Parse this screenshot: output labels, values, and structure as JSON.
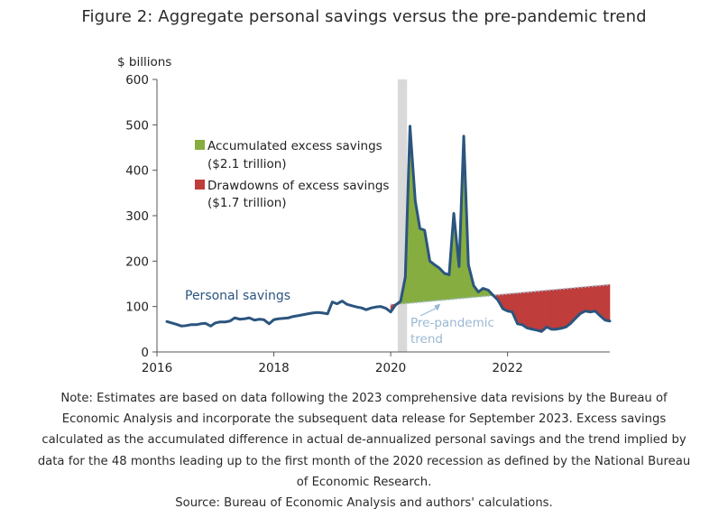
{
  "figure": {
    "title": "Figure 2: Aggregate personal savings versus the pre-pandemic trend",
    "note_lines": [
      "Note: Estimates are based on data following the 2023 comprehensive data revisions by the Bureau of",
      "Economic Analysis and incorporate the subsequent data release for September 2023. Excess savings",
      "calculated as the accumulated difference in actual de-annualized personal savings and the trend implied by",
      "data for the 48 months leading up to the first month of the 2020 recession as defined by the National Bureau",
      "of Economic Research."
    ],
    "source": "Source: Bureau of Economic Analysis and authors' calculations."
  },
  "chart_data": {
    "type": "area",
    "ylabel": "$ billions",
    "ylim": [
      0,
      600
    ],
    "yticks": [
      0,
      100,
      200,
      300,
      400,
      500,
      600
    ],
    "xlim": [
      2016,
      2023.75
    ],
    "xticks": [
      2016,
      2018,
      2020,
      2022
    ],
    "grid": false,
    "recession_shade": [
      2020.12,
      2020.28
    ],
    "colors": {
      "savings_line": "#2b557f",
      "trend_line": "#9bb8d3",
      "excess_fill": "#86ad3f",
      "drawdown_fill": "#bf3d3a",
      "recession": "#d9d9d9",
      "axis": "#555555"
    },
    "legend": {
      "placement": "center-left",
      "entries": [
        {
          "label_line1": "Accumulated excess savings",
          "label_line2": "($2.1 trillion)",
          "color": "#86ad3f"
        },
        {
          "label_line1": "Drawdowns of excess savings",
          "label_line2": "($1.7 trillion)",
          "color": "#bf3d3a"
        }
      ]
    },
    "annotations": {
      "personal_savings": "Personal savings",
      "trend_line1": "Pre-pandemic",
      "trend_line2": "trend"
    },
    "trend": {
      "x": [
        2020.0,
        2023.75
      ],
      "y": [
        104,
        148
      ]
    },
    "series": [
      {
        "name": "Personal savings",
        "x": [
          2016.17,
          2016.25,
          2016.33,
          2016.42,
          2016.5,
          2016.58,
          2016.67,
          2016.75,
          2016.83,
          2016.92,
          2017.0,
          2017.08,
          2017.17,
          2017.25,
          2017.33,
          2017.42,
          2017.5,
          2017.58,
          2017.67,
          2017.75,
          2017.83,
          2017.92,
          2018.0,
          2018.08,
          2018.17,
          2018.25,
          2018.33,
          2018.42,
          2018.5,
          2018.58,
          2018.67,
          2018.75,
          2018.83,
          2018.92,
          2019.0,
          2019.08,
          2019.17,
          2019.25,
          2019.33,
          2019.42,
          2019.5,
          2019.58,
          2019.67,
          2019.75,
          2019.83,
          2019.92,
          2020.0,
          2020.08,
          2020.17,
          2020.25,
          2020.33,
          2020.42,
          2020.5,
          2020.58,
          2020.67,
          2020.75,
          2020.83,
          2020.92,
          2021.0,
          2021.08,
          2021.17,
          2021.25,
          2021.33,
          2021.42,
          2021.5,
          2021.58,
          2021.67,
          2021.75,
          2021.83,
          2021.92,
          2022.0,
          2022.08,
          2022.17,
          2022.25,
          2022.33,
          2022.42,
          2022.5,
          2022.58,
          2022.67,
          2022.75,
          2022.83,
          2022.92,
          2023.0,
          2023.08,
          2023.17,
          2023.25,
          2023.33,
          2023.42,
          2023.5,
          2023.58,
          2023.67,
          2023.75
        ],
        "y": [
          67,
          64,
          61,
          57,
          58,
          60,
          60,
          62,
          63,
          57,
          64,
          66,
          66,
          68,
          75,
          72,
          73,
          75,
          70,
          72,
          71,
          62,
          71,
          73,
          74,
          75,
          78,
          80,
          82,
          84,
          86,
          87,
          86,
          84,
          110,
          106,
          112,
          105,
          102,
          99,
          97,
          93,
          97,
          99,
          100,
          96,
          88,
          103,
          112,
          165,
          497,
          333,
          272,
          268,
          200,
          192,
          185,
          173,
          170,
          305,
          188,
          475,
          192,
          146,
          132,
          140,
          136,
          125,
          115,
          95,
          90,
          88,
          62,
          60,
          53,
          50,
          48,
          45,
          55,
          50,
          50,
          52,
          55,
          63,
          75,
          85,
          90,
          88,
          90,
          80,
          70,
          68
        ]
      }
    ]
  }
}
